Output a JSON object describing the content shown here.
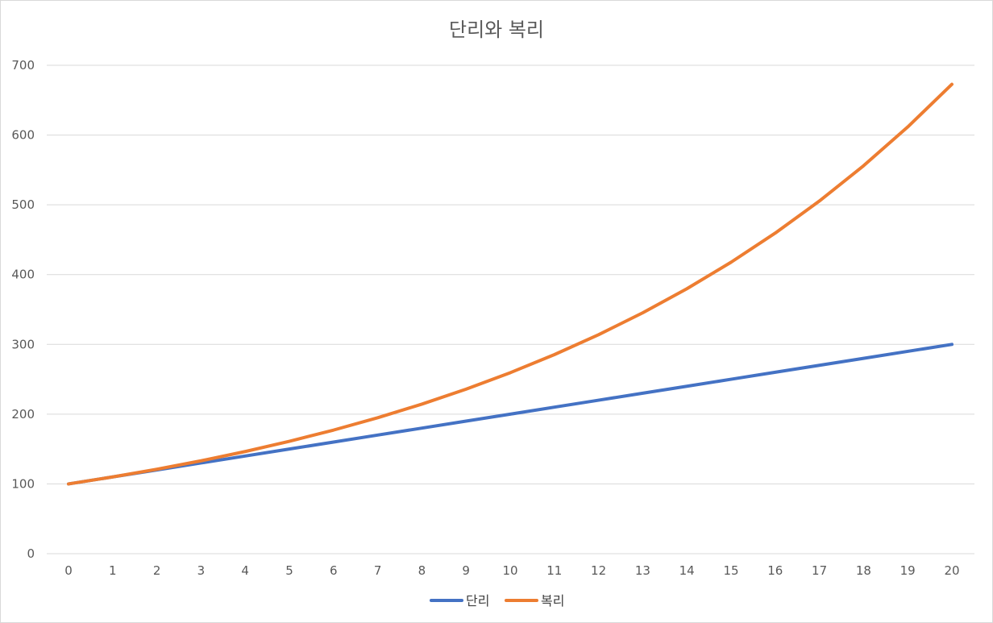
{
  "chart_data": {
    "type": "line",
    "title": "단리와 복리",
    "xlabel": "",
    "ylabel": "",
    "x": [
      0,
      1,
      2,
      3,
      4,
      5,
      6,
      7,
      8,
      9,
      10,
      11,
      12,
      13,
      14,
      15,
      16,
      17,
      18,
      19,
      20
    ],
    "ylim": [
      0,
      700
    ],
    "yticks": [
      0,
      100,
      200,
      300,
      400,
      500,
      600,
      700
    ],
    "grid": true,
    "legend_position": "bottom",
    "series": [
      {
        "name": "단리",
        "color": "#4472c4",
        "values": [
          100,
          110,
          120,
          130,
          140,
          150,
          160,
          170,
          180,
          190,
          200,
          210,
          220,
          230,
          240,
          250,
          260,
          270,
          280,
          290,
          300
        ]
      },
      {
        "name": "복리",
        "color": "#ed7d31",
        "values": [
          100,
          110,
          121,
          133.1,
          146.41,
          161.05,
          177.16,
          194.87,
          214.36,
          235.79,
          259.37,
          285.31,
          313.84,
          345.23,
          379.75,
          417.72,
          459.5,
          505.45,
          555.99,
          611.59,
          672.75
        ]
      }
    ]
  }
}
